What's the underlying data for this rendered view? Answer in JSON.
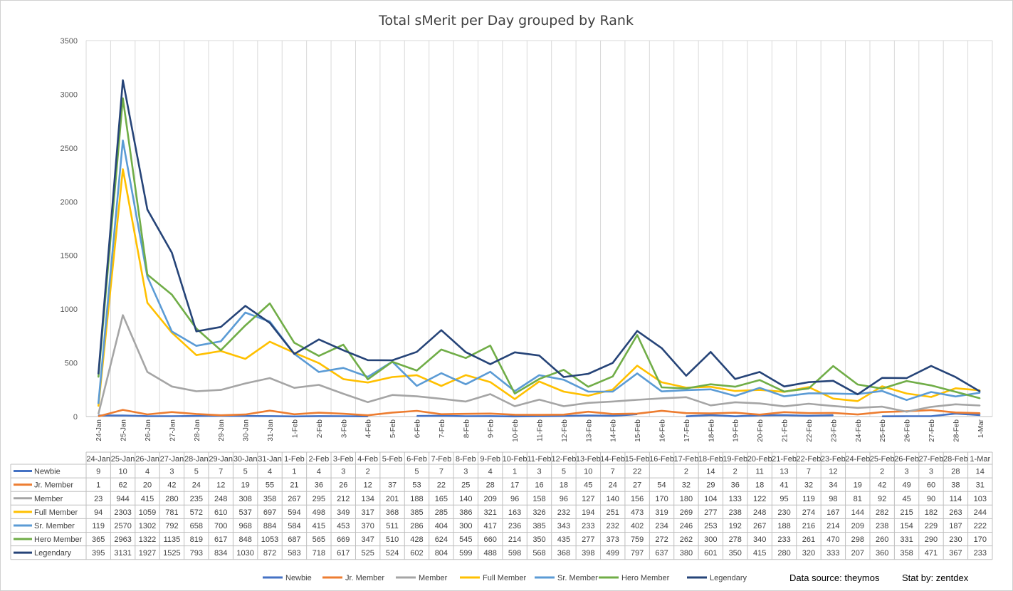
{
  "chart_data": {
    "type": "line",
    "title": "Total sMerit per Day grouped by Rank",
    "xlabel": "",
    "ylabel": "",
    "ylim": [
      0,
      3500
    ],
    "yticks": [
      0,
      500,
      1000,
      1500,
      2000,
      2500,
      3000,
      3500
    ],
    "grid": "vertical",
    "legend_placement": "bottom",
    "data_table": true,
    "categories": [
      "24-Jan",
      "25-Jan",
      "26-Jan",
      "27-Jan",
      "28-Jan",
      "29-Jan",
      "30-Jan",
      "31-Jan",
      "1-Feb",
      "2-Feb",
      "3-Feb",
      "4-Feb",
      "5-Feb",
      "6-Feb",
      "7-Feb",
      "8-Feb",
      "9-Feb",
      "10-Feb",
      "11-Feb",
      "12-Feb",
      "13-Feb",
      "14-Feb",
      "15-Feb",
      "16-Feb",
      "17-Feb",
      "18-Feb",
      "19-Feb",
      "20-Feb",
      "21-Feb",
      "22-Feb",
      "23-Feb",
      "24-Feb",
      "25-Feb",
      "26-Feb",
      "27-Feb",
      "28-Feb",
      "1-Mar"
    ],
    "series": [
      {
        "name": "Newbie",
        "color": "#4472C4",
        "values": [
          9,
          10,
          4,
          3,
          5,
          7,
          5,
          4,
          1,
          4,
          3,
          2,
          null,
          5,
          7,
          3,
          4,
          1,
          3,
          5,
          10,
          7,
          22,
          null,
          2,
          14,
          2,
          11,
          13,
          7,
          12,
          null,
          2,
          3,
          3,
          28,
          14
        ]
      },
      {
        "name": "Jr. Member",
        "color": "#ED7D31",
        "values": [
          1,
          62,
          20,
          42,
          24,
          12,
          19,
          55,
          21,
          36,
          26,
          12,
          37,
          53,
          22,
          25,
          28,
          17,
          16,
          18,
          45,
          24,
          27,
          54,
          32,
          29,
          36,
          18,
          41,
          32,
          34,
          19,
          42,
          49,
          60,
          38,
          31
        ]
      },
      {
        "name": "Member",
        "color": "#A5A5A5",
        "values": [
          23,
          944,
          415,
          280,
          235,
          248,
          308,
          358,
          267,
          295,
          212,
          134,
          201,
          188,
          165,
          140,
          209,
          96,
          158,
          96,
          127,
          140,
          156,
          170,
          180,
          104,
          133,
          122,
          95,
          119,
          98,
          81,
          92,
          45,
          90,
          114,
          103
        ]
      },
      {
        "name": "Full Member",
        "color": "#FFC000",
        "values": [
          94,
          2303,
          1059,
          781,
          572,
          610,
          537,
          697,
          594,
          498,
          349,
          317,
          368,
          385,
          285,
          386,
          321,
          163,
          326,
          232,
          194,
          251,
          473,
          319,
          269,
          277,
          238,
          248,
          230,
          274,
          167,
          144,
          282,
          215,
          182,
          263,
          244
        ]
      },
      {
        "name": "Sr. Member",
        "color": "#5B9BD5",
        "values": [
          119,
          2570,
          1302,
          792,
          658,
          700,
          968,
          884,
          584,
          415,
          453,
          370,
          511,
          286,
          404,
          300,
          417,
          236,
          385,
          343,
          233,
          232,
          402,
          234,
          246,
          253,
          192,
          267,
          188,
          216,
          214,
          209,
          238,
          154,
          229,
          187,
          222
        ]
      },
      {
        "name": "Hero Member",
        "color": "#70AD47",
        "values": [
          365,
          2963,
          1322,
          1135,
          819,
          617,
          848,
          1053,
          687,
          565,
          669,
          347,
          510,
          428,
          624,
          545,
          660,
          214,
          350,
          435,
          277,
          373,
          759,
          272,
          262,
          300,
          278,
          340,
          233,
          261,
          470,
          298,
          260,
          331,
          290,
          230,
          170
        ]
      },
      {
        "name": "Legendary",
        "color": "#264478",
        "values": [
          395,
          3131,
          1927,
          1525,
          793,
          834,
          1030,
          872,
          583,
          718,
          617,
          525,
          524,
          602,
          804,
          599,
          488,
          598,
          568,
          368,
          398,
          499,
          797,
          637,
          380,
          601,
          350,
          415,
          280,
          320,
          333,
          207,
          360,
          358,
          471,
          367,
          233
        ]
      }
    ]
  },
  "credits": {
    "source": "Data source: theymos",
    "stat_by": "Stat by: zentdex"
  }
}
